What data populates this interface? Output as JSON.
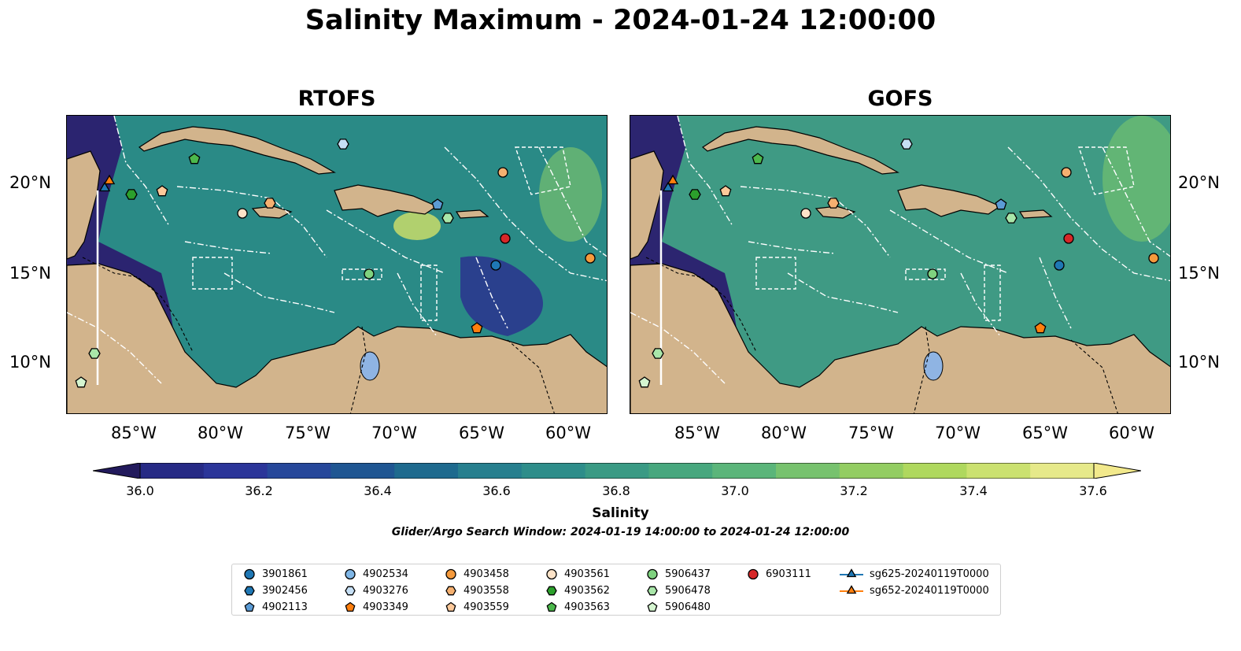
{
  "title": "Salinity Maximum - 2024-01-24 12:00:00",
  "panels": [
    {
      "title": "RTOFS",
      "ocean_color": "#2a8a86",
      "y_labels": [
        "20°N",
        "15°N",
        "10°N"
      ],
      "x_labels": [
        "85°W",
        "80°W",
        "75°W",
        "70°W",
        "65°W",
        "60°W"
      ]
    },
    {
      "title": "GOFS",
      "ocean_color": "#3f9a84",
      "y_labels": [
        "20°N",
        "15°N",
        "10°N"
      ],
      "x_labels": [
        "85°W",
        "80°W",
        "75°W",
        "70°W",
        "65°W",
        "60°W"
      ]
    }
  ],
  "colors": {
    "land": "#d2b48c",
    "lake": "#8fb4e3",
    "deep_low": "#2b1f6f"
  },
  "colorbar": {
    "label": "Salinity",
    "ticks": [
      "36.0",
      "36.2",
      "36.4",
      "36.6",
      "36.8",
      "37.0",
      "37.2",
      "37.4",
      "37.6"
    ],
    "colors": [
      "#262a85",
      "#2b3599",
      "#26479a",
      "#1f5692",
      "#1e6a8e",
      "#277f8e",
      "#2e8d8a",
      "#3a9a84",
      "#47a77e",
      "#5bb57a",
      "#77c26e",
      "#93cd62",
      "#afd85e",
      "#cbe170",
      "#e6e98a"
    ],
    "under_color": "#221a5c",
    "over_color": "#f2e98c"
  },
  "search_window": "Glider/Argo Search Window: 2024-01-19 14:00:00 to 2024-01-24 12:00:00",
  "legend": {
    "items": [
      {
        "label": "3901861",
        "shape": "circle",
        "color": "#1f77b4"
      },
      {
        "label": "3902456",
        "shape": "hexagon",
        "color": "#1f77b4"
      },
      {
        "label": "4902113",
        "shape": "pentagon",
        "color": "#5b9bd5"
      },
      {
        "label": "4902534",
        "shape": "circle",
        "color": "#7fb6e6"
      },
      {
        "label": "4903276",
        "shape": "hexagon",
        "color": "#c6dff5"
      },
      {
        "label": "4903349",
        "shape": "pentagon",
        "color": "#ff7f0e"
      },
      {
        "label": "4903458",
        "shape": "circle",
        "color": "#f59a3c"
      },
      {
        "label": "4903558",
        "shape": "hexagon",
        "color": "#f5b070"
      },
      {
        "label": "4903559",
        "shape": "pentagon",
        "color": "#fdc99a"
      },
      {
        "label": "4903561",
        "shape": "circle",
        "color": "#fde3c8"
      },
      {
        "label": "4903562",
        "shape": "hexagon",
        "color": "#2ca02c"
      },
      {
        "label": "4903563",
        "shape": "pentagon",
        "color": "#4cb84c"
      },
      {
        "label": "5906437",
        "shape": "circle",
        "color": "#7fd27f"
      },
      {
        "label": "5906478",
        "shape": "hexagon",
        "color": "#a9e6a9"
      },
      {
        "label": "5906480",
        "shape": "pentagon",
        "color": "#d5f5d0"
      },
      {
        "label": "6903111",
        "shape": "circle",
        "color": "#d62728"
      },
      {
        "label": "sg625-20240119T0000",
        "shape": "triangle",
        "color": "#1f77b4"
      },
      {
        "label": "sg652-20240119T0000",
        "shape": "triangle",
        "color": "#ff7f0e"
      }
    ]
  }
}
